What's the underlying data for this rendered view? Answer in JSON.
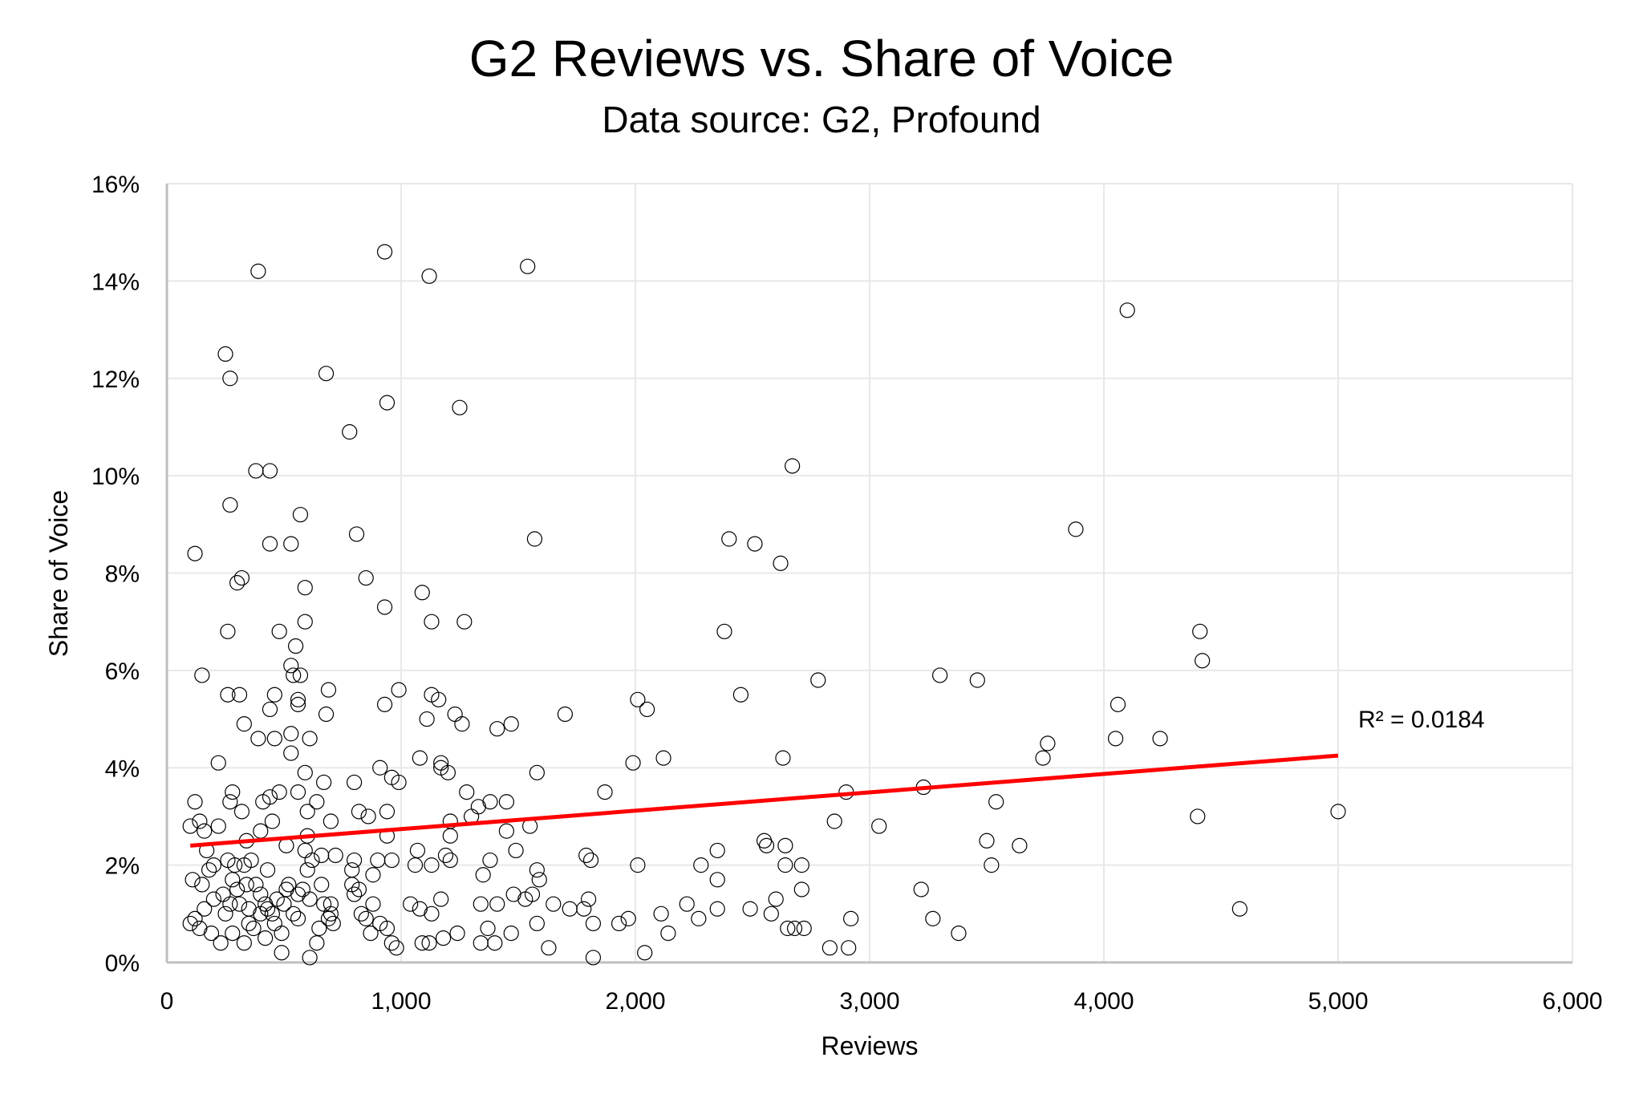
{
  "chart_data": {
    "type": "scatter",
    "title": "G2 Reviews vs. Share of Voice",
    "subtitle": "Data source: G2, Profound",
    "xlabel": "Reviews",
    "ylabel": "Share of Voice",
    "xlim": [
      0,
      6000
    ],
    "ylim": [
      0,
      16
    ],
    "x_ticks": [
      "0",
      "1,000",
      "2,000",
      "3,000",
      "4,000",
      "5,000",
      "6,000"
    ],
    "y_ticks": [
      "0%",
      "2%",
      "4%",
      "6%",
      "8%",
      "10%",
      "12%",
      "14%",
      "16%"
    ],
    "grid": true,
    "marker": "hollow-circle",
    "colors": {
      "marker": "#000000",
      "trendline": "#ff0000",
      "grid": "#e8e8e8",
      "axis": "#bfbfbf"
    },
    "trendline": {
      "type": "linear",
      "x": [
        100,
        5000
      ],
      "y": [
        2.4,
        4.25
      ],
      "label": "R² = 0.0184"
    },
    "points": [
      [
        390,
        14.2
      ],
      [
        930,
        14.6
      ],
      [
        1120,
        14.1
      ],
      [
        1540,
        14.3
      ],
      [
        4100,
        13.4
      ],
      [
        250,
        12.5
      ],
      [
        270,
        12.0
      ],
      [
        680,
        12.1
      ],
      [
        940,
        11.5
      ],
      [
        1250,
        11.4
      ],
      [
        780,
        10.9
      ],
      [
        380,
        10.1
      ],
      [
        440,
        10.1
      ],
      [
        2670,
        10.2
      ],
      [
        270,
        9.4
      ],
      [
        570,
        9.2
      ],
      [
        120,
        8.4
      ],
      [
        440,
        8.6
      ],
      [
        530,
        8.6
      ],
      [
        810,
        8.8
      ],
      [
        1570,
        8.7
      ],
      [
        2400,
        8.7
      ],
      [
        2510,
        8.6
      ],
      [
        3880,
        8.9
      ],
      [
        300,
        7.8
      ],
      [
        320,
        7.9
      ],
      [
        590,
        7.7
      ],
      [
        850,
        7.9
      ],
      [
        1090,
        7.6
      ],
      [
        2620,
        8.2
      ],
      [
        260,
        6.8
      ],
      [
        480,
        6.8
      ],
      [
        590,
        7.0
      ],
      [
        930,
        7.3
      ],
      [
        1130,
        7.0
      ],
      [
        1270,
        7.0
      ],
      [
        2380,
        6.8
      ],
      [
        4410,
        6.8
      ],
      [
        4420,
        6.2
      ],
      [
        150,
        5.9
      ],
      [
        530,
        6.1
      ],
      [
        550,
        6.5
      ],
      [
        540,
        5.9
      ],
      [
        570,
        5.9
      ],
      [
        3300,
        5.9
      ],
      [
        3460,
        5.8
      ],
      [
        2780,
        5.8
      ],
      [
        260,
        5.5
      ],
      [
        310,
        5.5
      ],
      [
        460,
        5.5
      ],
      [
        440,
        5.2
      ],
      [
        560,
        5.4
      ],
      [
        560,
        5.3
      ],
      [
        690,
        5.6
      ],
      [
        680,
        5.1
      ],
      [
        930,
        5.3
      ],
      [
        990,
        5.6
      ],
      [
        1130,
        5.5
      ],
      [
        1160,
        5.4
      ],
      [
        1110,
        5.0
      ],
      [
        1230,
        5.1
      ],
      [
        1260,
        4.9
      ],
      [
        1410,
        4.8
      ],
      [
        1470,
        4.9
      ],
      [
        1700,
        5.1
      ],
      [
        2010,
        5.4
      ],
      [
        2050,
        5.2
      ],
      [
        2450,
        5.5
      ],
      [
        4060,
        5.3
      ],
      [
        4050,
        4.6
      ],
      [
        4240,
        4.6
      ],
      [
        3760,
        4.5
      ],
      [
        3740,
        4.2
      ],
      [
        330,
        4.9
      ],
      [
        390,
        4.6
      ],
      [
        460,
        4.6
      ],
      [
        530,
        4.7
      ],
      [
        610,
        4.6
      ],
      [
        220,
        4.1
      ],
      [
        530,
        4.3
      ],
      [
        1080,
        4.2
      ],
      [
        1170,
        4.1
      ],
      [
        1170,
        4.0
      ],
      [
        1200,
        3.9
      ],
      [
        910,
        4.0
      ],
      [
        960,
        3.8
      ],
      [
        990,
        3.7
      ],
      [
        800,
        3.7
      ],
      [
        670,
        3.7
      ],
      [
        590,
        3.9
      ],
      [
        1580,
        3.9
      ],
      [
        1990,
        4.1
      ],
      [
        2120,
        4.2
      ],
      [
        2630,
        4.2
      ],
      [
        3230,
        3.6
      ],
      [
        3540,
        3.3
      ],
      [
        2900,
        3.5
      ],
      [
        1870,
        3.5
      ],
      [
        4400,
        3.0
      ],
      [
        5000,
        3.1
      ],
      [
        3500,
        2.5
      ],
      [
        3520,
        2.0
      ],
      [
        3640,
        2.4
      ],
      [
        3040,
        2.8
      ],
      [
        2850,
        2.9
      ],
      [
        2550,
        2.5
      ],
      [
        2560,
        2.4
      ],
      [
        2640,
        2.4
      ],
      [
        2640,
        2.0
      ],
      [
        2710,
        2.0
      ],
      [
        2710,
        1.5
      ],
      [
        2350,
        2.3
      ],
      [
        2280,
        2.0
      ],
      [
        2350,
        1.7
      ],
      [
        2010,
        2.0
      ],
      [
        1790,
        2.2
      ],
      [
        1810,
        2.1
      ],
      [
        1550,
        2.8
      ],
      [
        1450,
        2.7
      ],
      [
        1490,
        2.3
      ],
      [
        1380,
        2.1
      ],
      [
        1450,
        3.3
      ],
      [
        1380,
        3.3
      ],
      [
        1330,
        3.2
      ],
      [
        1300,
        3.0
      ],
      [
        1280,
        3.5
      ],
      [
        1210,
        2.9
      ],
      [
        1210,
        2.6
      ],
      [
        1190,
        2.2
      ],
      [
        1210,
        2.1
      ],
      [
        1130,
        2.0
      ],
      [
        1070,
        2.3
      ],
      [
        1060,
        2.0
      ],
      [
        940,
        3.1
      ],
      [
        860,
        3.0
      ],
      [
        820,
        3.1
      ],
      [
        940,
        2.6
      ],
      [
        700,
        2.9
      ],
      [
        720,
        2.2
      ],
      [
        640,
        3.3
      ],
      [
        600,
        3.1
      ],
      [
        600,
        2.6
      ],
      [
        560,
        3.5
      ],
      [
        480,
        3.5
      ],
      [
        440,
        3.4
      ],
      [
        410,
        3.3
      ],
      [
        320,
        3.1
      ],
      [
        270,
        3.3
      ],
      [
        280,
        3.5
      ],
      [
        120,
        3.3
      ],
      [
        140,
        2.9
      ],
      [
        100,
        2.8
      ],
      [
        160,
        2.7
      ],
      [
        220,
        2.8
      ],
      [
        340,
        2.5
      ],
      [
        400,
        2.7
      ],
      [
        450,
        2.9
      ],
      [
        510,
        2.4
      ],
      [
        590,
        2.3
      ],
      [
        660,
        2.2
      ],
      [
        1580,
        1.9
      ],
      [
        1590,
        1.7
      ],
      [
        1560,
        1.4
      ],
      [
        1480,
        1.4
      ],
      [
        1350,
        1.8
      ],
      [
        1340,
        1.2
      ],
      [
        1410,
        1.2
      ],
      [
        1530,
        1.3
      ],
      [
        1650,
        1.2
      ],
      [
        1720,
        1.1
      ],
      [
        1780,
        1.1
      ],
      [
        1800,
        1.3
      ],
      [
        1820,
        0.8
      ],
      [
        1930,
        0.8
      ],
      [
        1970,
        0.9
      ],
      [
        2110,
        1.0
      ],
      [
        2140,
        0.6
      ],
      [
        2220,
        1.2
      ],
      [
        2270,
        0.9
      ],
      [
        2350,
        1.1
      ],
      [
        2490,
        1.1
      ],
      [
        2580,
        1.0
      ],
      [
        2600,
        1.3
      ],
      [
        2650,
        0.7
      ],
      [
        2680,
        0.7
      ],
      [
        2720,
        0.7
      ],
      [
        2830,
        0.3
      ],
      [
        2910,
        0.3
      ],
      [
        2920,
        0.9
      ],
      [
        3220,
        1.5
      ],
      [
        3270,
        0.9
      ],
      [
        3380,
        0.6
      ],
      [
        4580,
        1.1
      ],
      [
        1820,
        0.1
      ],
      [
        2040,
        0.2
      ],
      [
        1630,
        0.3
      ],
      [
        1580,
        0.8
      ],
      [
        1470,
        0.6
      ],
      [
        1400,
        0.4
      ],
      [
        1370,
        0.7
      ],
      [
        1340,
        0.4
      ],
      [
        1240,
        0.6
      ],
      [
        1180,
        0.5
      ],
      [
        1120,
        0.4
      ],
      [
        1090,
        0.4
      ],
      [
        1130,
        1.0
      ],
      [
        1170,
        1.3
      ],
      [
        1080,
        1.1
      ],
      [
        1040,
        1.2
      ],
      [
        980,
        0.3
      ],
      [
        960,
        0.4
      ],
      [
        940,
        0.7
      ],
      [
        910,
        0.8
      ],
      [
        870,
        0.6
      ],
      [
        850,
        0.9
      ],
      [
        880,
        1.2
      ],
      [
        830,
        1.0
      ],
      [
        800,
        1.4
      ],
      [
        790,
        1.6
      ],
      [
        820,
        1.5
      ],
      [
        880,
        1.8
      ],
      [
        900,
        2.1
      ],
      [
        960,
        2.1
      ],
      [
        800,
        2.1
      ],
      [
        790,
        1.9
      ],
      [
        700,
        1.0
      ],
      [
        710,
        0.8
      ],
      [
        690,
        0.9
      ],
      [
        670,
        1.2
      ],
      [
        650,
        0.7
      ],
      [
        640,
        0.4
      ],
      [
        610,
        0.1
      ],
      [
        610,
        1.3
      ],
      [
        560,
        0.9
      ],
      [
        580,
        1.5
      ],
      [
        520,
        1.6
      ],
      [
        500,
        1.2
      ],
      [
        490,
        0.6
      ],
      [
        490,
        0.2
      ],
      [
        460,
        0.8
      ],
      [
        420,
        0.5
      ],
      [
        400,
        1.0
      ],
      [
        400,
        1.4
      ],
      [
        370,
        0.7
      ],
      [
        350,
        1.1
      ],
      [
        330,
        0.4
      ],
      [
        310,
        1.2
      ],
      [
        300,
        1.5
      ],
      [
        290,
        2.0
      ],
      [
        280,
        0.6
      ],
      [
        250,
        1.0
      ],
      [
        240,
        1.4
      ],
      [
        230,
        0.4
      ],
      [
        200,
        1.3
      ],
      [
        190,
        0.6
      ],
      [
        180,
        1.9
      ],
      [
        160,
        1.1
      ],
      [
        140,
        0.7
      ],
      [
        120,
        0.9
      ],
      [
        110,
        1.7
      ],
      [
        100,
        0.8
      ],
      [
        150,
        1.6
      ],
      [
        170,
        2.3
      ],
      [
        200,
        2.0
      ],
      [
        260,
        2.1
      ],
      [
        280,
        1.7
      ],
      [
        330,
        2.0
      ],
      [
        360,
        2.1
      ],
      [
        380,
        1.6
      ],
      [
        430,
        1.9
      ],
      [
        470,
        1.3
      ],
      [
        540,
        1.0
      ],
      [
        560,
        1.4
      ],
      [
        600,
        1.9
      ],
      [
        620,
        2.1
      ],
      [
        660,
        1.6
      ],
      [
        700,
        1.2
      ],
      [
        430,
        1.1
      ],
      [
        350,
        0.8
      ],
      [
        270,
        1.2
      ],
      [
        450,
        1.0
      ],
      [
        510,
        1.5
      ],
      [
        340,
        1.6
      ],
      [
        420,
        1.2
      ]
    ]
  }
}
